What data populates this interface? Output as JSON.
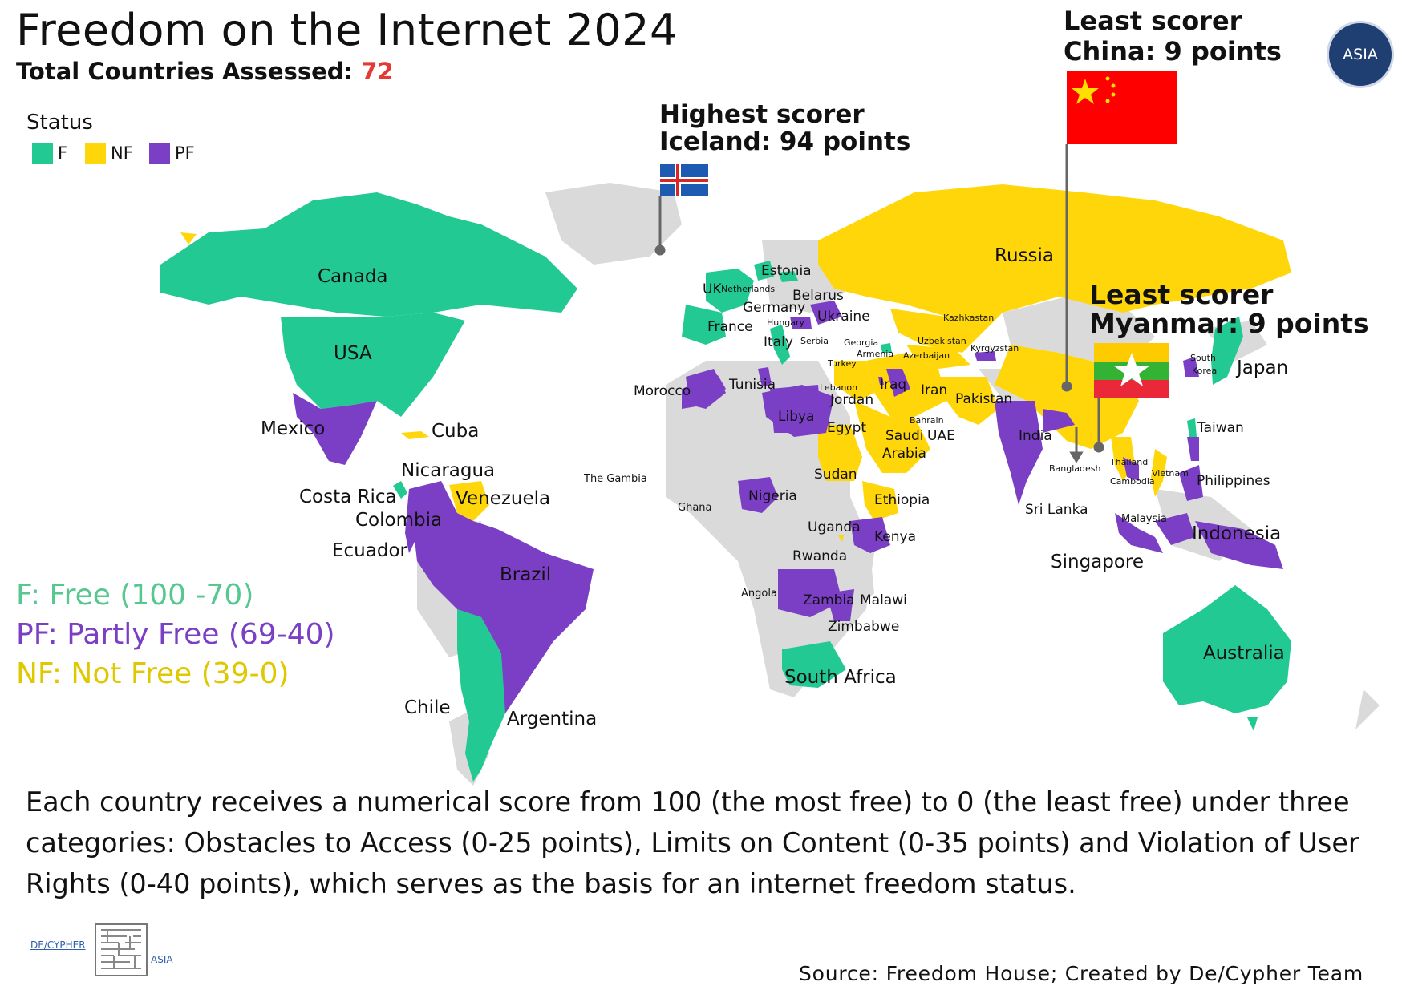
{
  "header": {
    "title": "Freedom on the Internet 2024",
    "subtitle_prefix": "Total Countries Assessed: ",
    "subtitle_value": "72"
  },
  "legend": {
    "title": "Status",
    "items": [
      {
        "key": "F",
        "label": "F",
        "color": "#22c993"
      },
      {
        "key": "NF",
        "label": "NF",
        "color": "#ffd60a"
      },
      {
        "key": "PF",
        "label": "PF",
        "color": "#7b3fc6"
      }
    ]
  },
  "colors": {
    "free": "#22c993",
    "not_free": "#ffd60a",
    "partly_free": "#7b3fc6",
    "unassessed": "#dadada"
  },
  "callouts": {
    "highest": {
      "line1": "Highest scorer",
      "line2": "Iceland: 94 points"
    },
    "least_china": {
      "line1": "Least scorer",
      "line2": "China: 9 points"
    },
    "least_myanmar": {
      "line1": "Least scorer",
      "line2": "Myanmar: 9 points"
    }
  },
  "countries": {
    "canada": "Canada",
    "usa": "USA",
    "mexico": "Mexico",
    "cuba": "Cuba",
    "nicaragua": "Nicaragua",
    "costa_rica": "Costa Rica",
    "venezuela": "Venezuela",
    "colombia": "Colombia",
    "ecuador": "Ecuador",
    "brazil": "Brazil",
    "chile": "Chile",
    "argentina": "Argentina",
    "uk": "UK",
    "netherlands": "Netherlands",
    "estonia": "Estonia",
    "belarus": "Belarus",
    "germany": "Germany",
    "hungary": "Hungary",
    "ukraine": "Ukraine",
    "france": "France",
    "italy": "Italy",
    "serbia": "Serbia",
    "georgia": "Georgia",
    "armenia": "Armenia",
    "azerbaijan": "Azerbaijan",
    "turkey": "Turkey",
    "russia": "Russia",
    "kazakhstan": "Kazhkastan",
    "uzbekistan": "Uzbekistan",
    "kyrgyzstan": "Kyrgyzstan",
    "morocco": "Morocco",
    "tunisia": "Tunisia",
    "libya": "Libya",
    "lebanon": "Lebanon",
    "jordan": "Jordan",
    "iraq": "Iraq",
    "iran": "Iran",
    "pakistan": "Pakistan",
    "egypt": "Egypt",
    "bahrain": "Bahrain",
    "saudi_arabia_1": "Saudi",
    "saudi_arabia_2": "Arabia",
    "uae": "UAE",
    "india": "India",
    "bangladesh": "Bangladesh",
    "sri_lanka": "Sri Lanka",
    "thailand": "Thailand",
    "cambodia": "Cambodia",
    "vietnam": "Vietnam",
    "malaysia": "Malaysia",
    "singapore": "Singapore",
    "indonesia": "Indonesia",
    "philippines": "Philippines",
    "taiwan": "Taiwan",
    "south_korea_1": "South",
    "south_korea_2": "Korea",
    "japan": "Japan",
    "australia": "Australia",
    "the_gambia": "The Gambia",
    "ghana": "Ghana",
    "nigeria": "Nigeria",
    "sudan": "Sudan",
    "ethiopia": "Ethiopia",
    "uganda": "Uganda",
    "kenya": "Kenya",
    "rwanda": "Rwanda",
    "angola": "Angola",
    "zambia": "Zambia",
    "malawi": "Malawi",
    "zimbabwe": "Zimbabwe",
    "south_africa": "South Africa"
  },
  "definitions": {
    "free": "F: Free (100 -70)",
    "partly_free": "PF: Partly Free (69-40)",
    "not_free": "NF: Not Free (39-0)"
  },
  "description": "Each country receives a numerical score from 100 (the most free) to 0 (the least free) under three categories: Obstacles to Access (0-25 points),  Limits on Content (0-35 points) and Violation of User Rights (0-40 points), which serves as the basis for an internet freedom status.",
  "source": "Source: Freedom House; Created by De/Cypher Team",
  "logos": {
    "asia": "ASIA",
    "decypher_left": "DE/CYPHER",
    "decypher_right": "ASIA"
  }
}
